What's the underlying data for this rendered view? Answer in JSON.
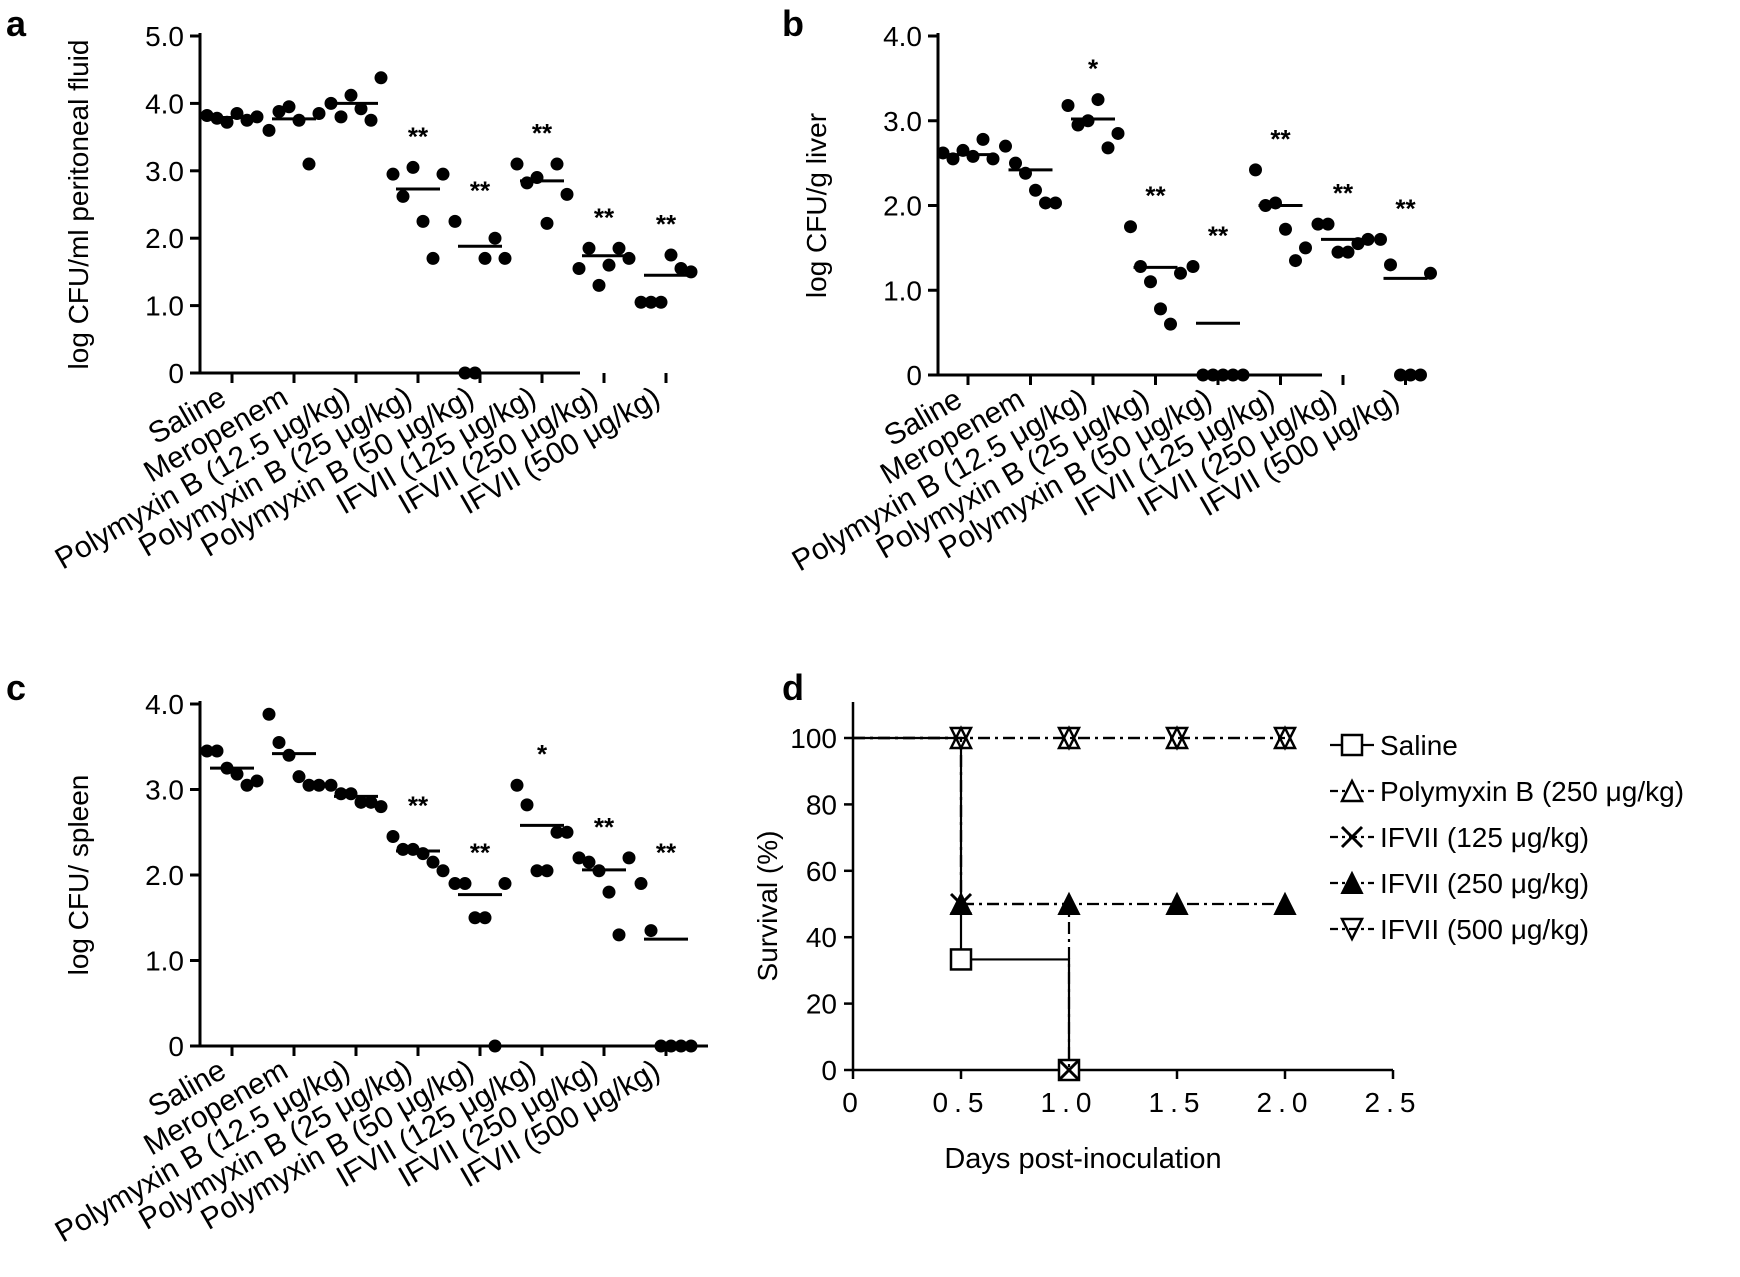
{
  "chart_data": [
    {
      "panel_label": "a",
      "type": "scatter",
      "ylabel": "log CFU/ml peritoneal fluid",
      "ylim": [
        0,
        5.0
      ],
      "yticks": [
        "0",
        "1.0",
        "2.0",
        "3.0",
        "4.0",
        "5.0"
      ],
      "categories": [
        "Saline",
        "Meropenem",
        "Polymyxin B (12.5 μg/kg)",
        "Polymyxin B (25 μg/kg)",
        "Polymyxin B (50 μg/kg)",
        "IFVII (125 μg/kg)",
        "IFVII (250 μg/kg)",
        "IFVII (500 μg/kg)"
      ],
      "points": [
        [
          3.82,
          3.78,
          3.72,
          3.85,
          3.75,
          3.8
        ],
        [
          3.6,
          3.88,
          3.95,
          3.75,
          3.1,
          3.85
        ],
        [
          4.0,
          3.8,
          4.12,
          3.92,
          3.75,
          4.38
        ],
        [
          2.95,
          2.62,
          3.05,
          2.25,
          1.7,
          2.95
        ],
        [
          2.25,
          0,
          0,
          1.7,
          2.0,
          1.7
        ],
        [
          3.1,
          2.82,
          2.9,
          2.22,
          3.1,
          2.65
        ],
        [
          1.55,
          1.85,
          1.3,
          1.6,
          1.85,
          1.7
        ],
        [
          1.05,
          1.05,
          1.05,
          1.75,
          1.55,
          1.5
        ]
      ],
      "means": [
        3.79,
        3.77,
        4.0,
        2.73,
        1.88,
        2.85,
        1.74,
        1.45
      ],
      "significance": [
        "",
        "",
        "",
        "**",
        "**",
        "**",
        "**",
        "**"
      ]
    },
    {
      "panel_label": "b",
      "type": "scatter",
      "ylabel": "log CFU/g liver",
      "ylim": [
        0,
        4.0
      ],
      "yticks": [
        "0",
        "1.0",
        "2.0",
        "3.0",
        "4.0"
      ],
      "categories": [
        "Saline",
        "Meropenem",
        "Polymyxin B (12.5 μg/kg)",
        "Polymyxin B (25 μg/kg)",
        "Polymyxin B (50 μg/kg)",
        "IFVII (125 μg/kg)",
        "IFVII (250 μg/kg)",
        "IFVII (500 μg/kg)"
      ],
      "points": [
        [
          2.62,
          2.55,
          2.65,
          2.58,
          2.78,
          2.55
        ],
        [
          2.7,
          2.5,
          2.38,
          2.18,
          2.03,
          2.03
        ],
        [
          3.18,
          2.95,
          3.0,
          3.25,
          2.68,
          2.85
        ],
        [
          1.75,
          1.28,
          1.1,
          0.78,
          0.6,
          1.2
        ],
        [
          1.28,
          0,
          0,
          0,
          0,
          0
        ],
        [
          2.42,
          2.0,
          2.03,
          1.72,
          1.35,
          1.5
        ],
        [
          1.78,
          1.78,
          1.45,
          1.45,
          1.55,
          1.6
        ],
        [
          1.6,
          1.3,
          0,
          0,
          0,
          1.2
        ]
      ],
      "means": [
        2.6,
        2.42,
        3.02,
        1.27,
        0.61,
        2.0,
        1.6,
        1.14
      ],
      "significance": [
        "",
        "",
        "*",
        "**",
        "**",
        "**",
        "**",
        "**"
      ]
    },
    {
      "panel_label": "c",
      "type": "scatter",
      "ylabel": "log CFU/ spleen",
      "ylim": [
        0,
        4.0
      ],
      "yticks": [
        "0",
        "1.0",
        "2.0",
        "3.0",
        "4.0"
      ],
      "categories": [
        "Saline",
        "Meropenem",
        "Polymyxin B (12.5 μg/kg)",
        "Polymyxin B (25 μg/kg)",
        "Polymyxin B (50 μg/kg)",
        "IFVII (125 μg/kg)",
        "IFVII (250 μg/kg)",
        "IFVII (500 μg/kg)"
      ],
      "points": [
        [
          3.45,
          3.45,
          3.25,
          3.18,
          3.05,
          3.1
        ],
        [
          3.88,
          3.55,
          3.4,
          3.15,
          3.05,
          3.05
        ],
        [
          3.05,
          2.95,
          2.95,
          2.85,
          2.85,
          2.8
        ],
        [
          2.45,
          2.3,
          2.3,
          2.25,
          2.15,
          2.05
        ],
        [
          1.9,
          1.9,
          1.5,
          1.5,
          0,
          1.9
        ],
        [
          3.05,
          2.82,
          2.05,
          2.05,
          2.5,
          2.5
        ],
        [
          2.2,
          2.15,
          2.05,
          1.8,
          1.3,
          2.2
        ],
        [
          1.9,
          1.35,
          0,
          0,
          0,
          0
        ]
      ],
      "means": [
        3.25,
        3.42,
        2.92,
        2.28,
        1.77,
        2.58,
        2.06,
        1.25
      ],
      "significance": [
        "",
        "",
        "",
        "**",
        "**",
        "*",
        "**",
        "**"
      ]
    },
    {
      "panel_label": "d",
      "type": "line",
      "xlabel": "Days post-inoculation",
      "ylabel": "Survival (%)",
      "xlim": [
        0,
        2.5
      ],
      "ylim": [
        0,
        100
      ],
      "xticks": [
        "0",
        "0.5",
        "1.0",
        "1.5",
        "2.0",
        "2.5"
      ],
      "yticks": [
        "0",
        "20",
        "40",
        "60",
        "80",
        "100"
      ],
      "legend_position": "right",
      "series": [
        {
          "name": "Saline",
          "marker": "square-open",
          "line": "solid",
          "x": [
            0,
            0.5,
            1.0
          ],
          "y": [
            100,
            33.3,
            0
          ]
        },
        {
          "name": "Polymyxin B (250 μg/kg)",
          "marker": "triangle-up-open",
          "line": "dash-dot",
          "x": [
            0,
            0.5,
            1.0,
            1.5,
            2.0
          ],
          "y": [
            100,
            100,
            100,
            100,
            100
          ]
        },
        {
          "name": "IFVII (125 μg/kg)",
          "marker": "x",
          "line": "dash-dot",
          "x": [
            0,
            0.5,
            1.0
          ],
          "y": [
            100,
            50,
            0
          ]
        },
        {
          "name": "IFVII (250 μg/kg)",
          "marker": "triangle-up-filled",
          "line": "dash-dot",
          "x": [
            0,
            0.5,
            1.0,
            1.5,
            2.0
          ],
          "y": [
            100,
            50,
            50,
            50,
            50
          ]
        },
        {
          "name": "IFVII (500 μg/kg)",
          "marker": "triangle-down-open",
          "line": "dash-dot",
          "x": [
            0,
            0.5,
            1.0,
            1.5,
            2.0
          ],
          "y": [
            100,
            100,
            100,
            100,
            100
          ]
        }
      ]
    }
  ]
}
